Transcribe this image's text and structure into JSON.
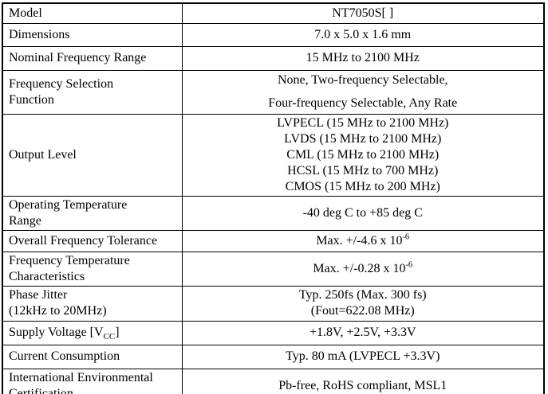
{
  "table": {
    "colors": {
      "border": "#000000",
      "text": "#000000",
      "background": "#ffffff"
    },
    "rows": [
      {
        "label": "Model",
        "value": "NT7050S[ ]"
      },
      {
        "label": "Dimensions",
        "value": "7.0 x 5.0 x 1.6 mm"
      },
      {
        "label": "Nominal Frequency Range",
        "value": "15 MHz to 2100 MHz"
      },
      {
        "label_lines": [
          "Frequency Selection",
          "Function"
        ],
        "value_lines": [
          "None, Two-frequency Selectable,",
          "Four-frequency Selectable, Any Rate"
        ]
      },
      {
        "label": "Output Level",
        "value_lines": [
          "LVPECL (15 MHz to 2100 MHz)",
          "LVDS (15 MHz to 2100 MHz)",
          "CML (15 MHz to 2100 MHz)",
          "HCSL (15 MHz to 700 MHz)",
          "CMOS (15 MHz to 200 MHz)"
        ]
      },
      {
        "label_lines": [
          "Operating Temperature",
          "Range"
        ],
        "value": "-40 deg C to +85 deg C"
      },
      {
        "label": "Overall Frequency Tolerance",
        "value_base": "Max. +/-4.6 x 10",
        "value_sup": "-6"
      },
      {
        "label_lines": [
          "Frequency Temperature",
          "Characteristics"
        ],
        "value_base": "Max. +/-0.28 x 10",
        "value_sup": "-6"
      },
      {
        "label_lines": [
          "Phase Jitter",
          "(12kHz to 20MHz)"
        ],
        "value_lines": [
          "Typ. 250fs (Max. 300 fs)",
          "(Fout=622.08 MHz)"
        ]
      },
      {
        "label_pre": "Supply Voltage [V",
        "label_sub": "CC",
        "label_post": "]",
        "value": "+1.8V, +2.5V, +3.3V"
      },
      {
        "label": "Current Consumption",
        "value": "Typ. 80 mA (LVPECL +3.3V)"
      },
      {
        "label_lines": [
          "International Environmental",
          "Certification"
        ],
        "value": "Pb-free, RoHS compliant, MSL1"
      }
    ]
  }
}
